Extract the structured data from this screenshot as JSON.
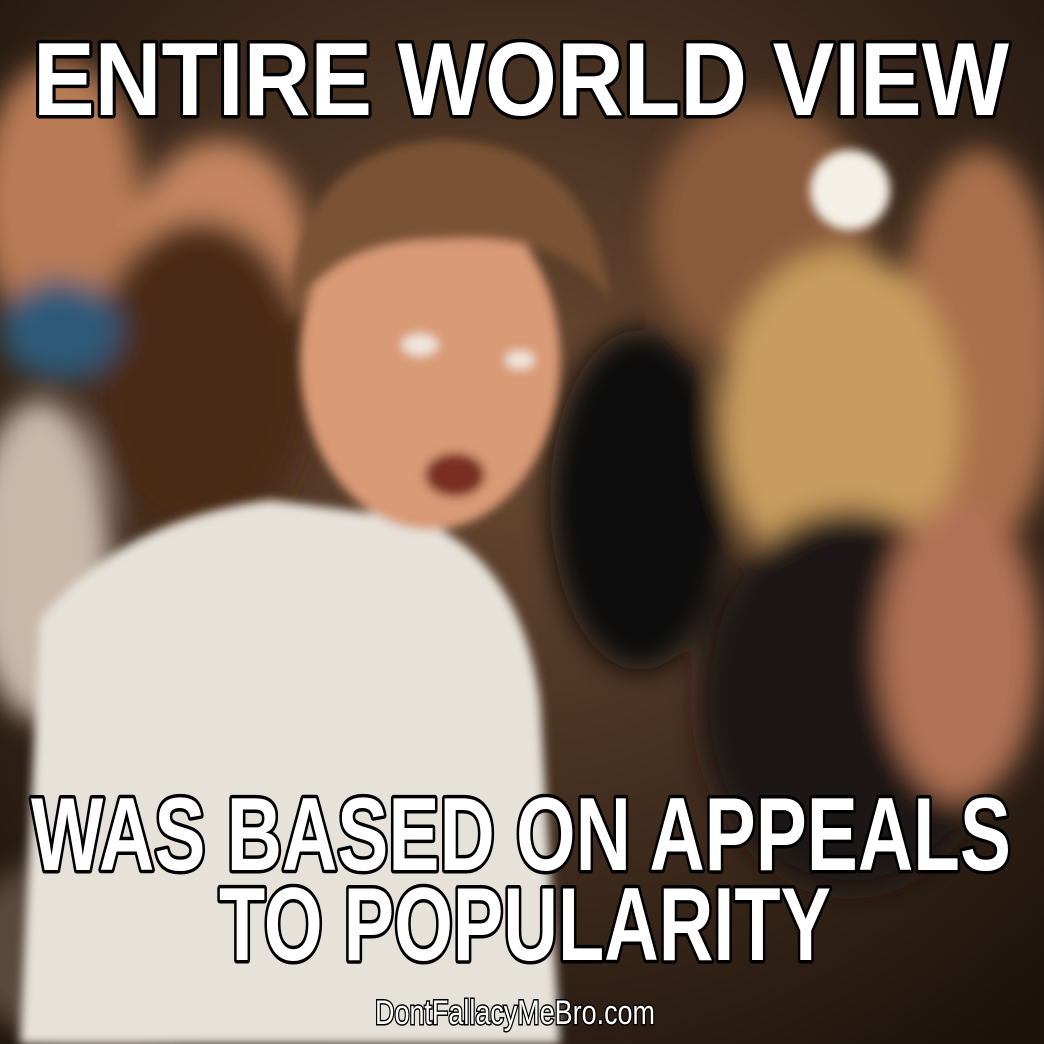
{
  "top_text": "ENTIRE WORLD VIEW",
  "bottom_text": [
    "WAS BASED ON APPEALS",
    "TO POPULARITY"
  ],
  "watermark": "DontFallacyMeBro.com"
}
